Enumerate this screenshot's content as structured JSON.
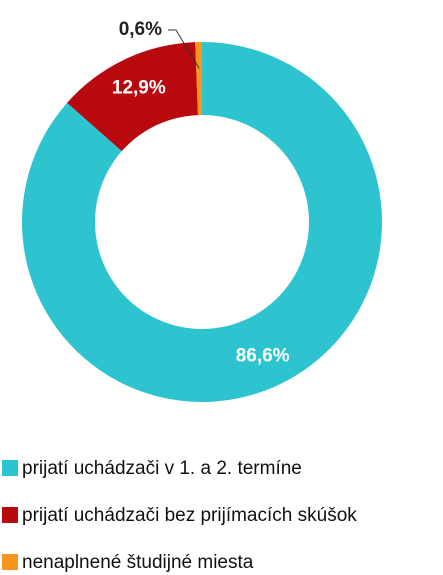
{
  "chart_data": {
    "type": "donut",
    "categories": [
      "prijatí uchádzači v 1. a 2. termíne",
      "prijatí uchádzači bez prijímacích skúšok",
      "nenaplnené študijné miesta"
    ],
    "values": [
      86.6,
      12.9,
      0.6
    ],
    "value_labels": [
      "86,6%",
      "12,9%",
      "0,6%"
    ],
    "colors": [
      "#2ec4cf",
      "#b8090f",
      "#f7941d"
    ],
    "legend": "bottom"
  }
}
